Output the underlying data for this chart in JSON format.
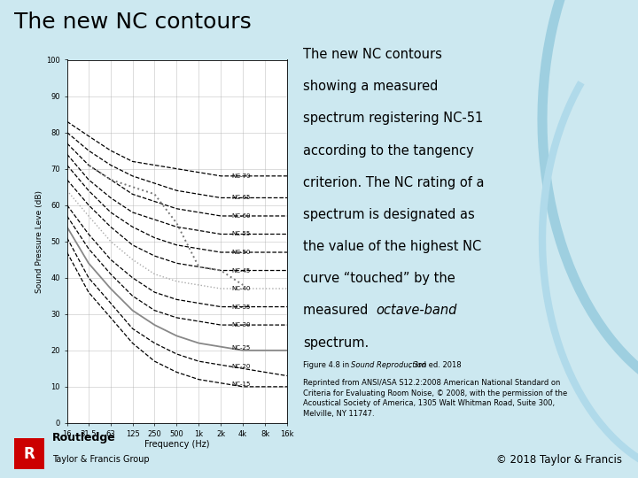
{
  "slide_bg": "#cce8f0",
  "slide_title": "The new NC contours",
  "ylabel": "Sound Pressure Leve (dB)",
  "xlabel": "Frequency (Hz)",
  "freqs": [
    16,
    31.5,
    63,
    125,
    250,
    500,
    1000,
    2000,
    4000,
    8000,
    16000
  ],
  "nc_contours": {
    "NC-15": [
      47,
      36,
      29,
      22,
      17,
      14,
      12,
      11,
      10,
      10,
      10
    ],
    "NC-20": [
      51,
      40,
      33,
      26,
      22,
      19,
      17,
      16,
      15,
      14,
      13
    ],
    "NC-25": [
      54,
      44,
      37,
      31,
      27,
      24,
      22,
      21,
      20,
      20,
      20
    ],
    "NC-30": [
      57,
      48,
      41,
      35,
      31,
      29,
      28,
      27,
      27,
      27,
      27
    ],
    "NC-35": [
      60,
      52,
      45,
      40,
      36,
      34,
      33,
      32,
      32,
      32,
      32
    ],
    "NC-40": [
      64,
      57,
      50,
      45,
      41,
      39,
      38,
      37,
      37,
      37,
      37
    ],
    "NC-45": [
      67,
      60,
      54,
      49,
      46,
      44,
      43,
      42,
      42,
      42,
      42
    ],
    "NC-50": [
      71,
      64,
      58,
      54,
      51,
      49,
      48,
      47,
      47,
      47,
      47
    ],
    "NC-55": [
      74,
      67,
      62,
      58,
      56,
      54,
      53,
      52,
      52,
      52,
      52
    ],
    "NC-60": [
      77,
      71,
      67,
      63,
      61,
      59,
      58,
      57,
      57,
      57,
      57
    ],
    "NC-65": [
      80,
      75,
      71,
      68,
      66,
      64,
      63,
      62,
      62,
      62,
      62
    ],
    "NC-70": [
      83,
      79,
      75,
      72,
      71,
      70,
      69,
      68,
      68,
      68,
      68
    ]
  },
  "measured_spectrum": {
    "freqs": [
      31.5,
      63,
      125,
      250,
      500,
      1000,
      2000,
      4000
    ],
    "values": [
      71,
      67,
      65,
      63,
      55,
      43,
      42,
      38
    ]
  },
  "ylim": [
    0,
    100
  ],
  "xlim_lo": 16,
  "xlim_hi": 16000,
  "yticks": [
    0,
    10,
    20,
    30,
    40,
    50,
    60,
    70,
    80,
    90,
    100
  ],
  "xtick_vals": [
    16,
    31.5,
    63,
    125,
    250,
    500,
    1000,
    2000,
    4000,
    8000,
    16000
  ],
  "xtick_labels": [
    "16",
    "31.5",
    "63",
    "125",
    "250",
    "500",
    "1k",
    "2k",
    "4k",
    "8k",
    "16k"
  ],
  "caption_line1": "Figure 4.8 in ",
  "caption_line1_italic": "Sound Reproduction",
  "caption_line1_rest": " , 3rd ed. 2018",
  "caption_rest": "Reprinted from ANSI/ASA S12.2:2008 American National Standard on\nCriteria for Evaluating Room Noise, © 2008, with the permission of the\nAcoustical Society of America, 1305 Walt Whitman Road, Suite 300,\nMelville, NY 11747.",
  "copyright_text": "© 2018 Taylor & Francis",
  "main_text_pre_italic": "The new NC contours\nshowing a measured\nspectrum registering NC-51\naccording to the tangency\ncriterion. The NC rating of a\nspectrum is designated as\nthe value of the highest NC\ncurve “touched” by the\nmeasured ",
  "main_text_italic": "octave-band",
  "main_text_post_italic": "\nspectrum.",
  "routledge_text": "Routledge",
  "tf_group_text": "Taylor & Francis Group"
}
